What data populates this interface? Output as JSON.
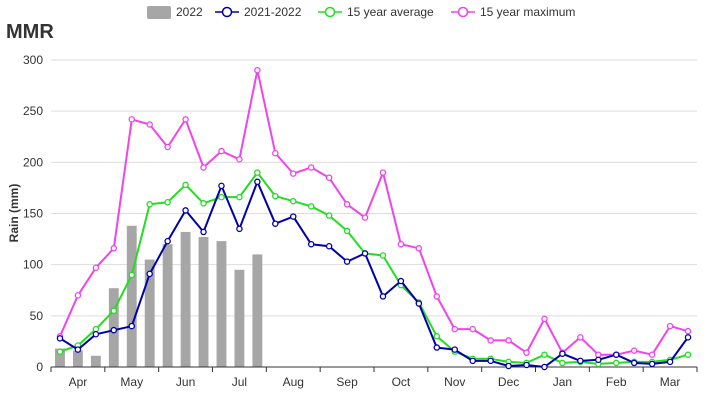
{
  "chart_data": {
    "type": "bar+line",
    "title": "MMR",
    "xlabel": "",
    "ylabel": "Rain (mm)",
    "ylim": [
      0,
      300
    ],
    "yticks": [
      0,
      50,
      100,
      150,
      200,
      250,
      300
    ],
    "grid": true,
    "legend_position": "top",
    "months": [
      "Apr",
      "May",
      "Jun",
      "Jul",
      "Aug",
      "Sep",
      "Oct",
      "Nov",
      "Dec",
      "Jan",
      "Feb",
      "Mar"
    ],
    "dekads_per_month": 3,
    "bar_series": {
      "name": "2022",
      "color": "#a6a6a6",
      "values": [
        18,
        16,
        11,
        77,
        138,
        105,
        120,
        132,
        127,
        123,
        95,
        110
      ]
    },
    "line_series": [
      {
        "name": "2021-2022",
        "color": "#0000aa",
        "values": [
          28,
          17,
          32,
          36,
          40,
          91,
          123,
          153,
          132,
          177,
          135,
          181,
          140,
          147,
          120,
          118,
          103,
          111,
          69,
          84,
          62,
          19,
          17,
          6,
          6,
          1,
          2,
          0,
          13,
          6,
          7,
          12,
          4,
          3,
          5,
          29
        ]
      },
      {
        "name": "15 year average",
        "color": "#22dd22",
        "values": [
          15,
          21,
          37,
          55,
          90,
          159,
          161,
          178,
          160,
          166,
          166,
          190,
          167,
          162,
          157,
          148,
          133,
          111,
          109,
          80,
          63,
          30,
          15,
          8,
          8,
          5,
          4,
          12,
          4,
          5,
          3,
          4,
          5,
          5,
          7,
          12
        ]
      },
      {
        "name": "15 year maximum",
        "color": "#ee44ee",
        "values": [
          30,
          70,
          97,
          116,
          242,
          237,
          215,
          242,
          195,
          211,
          203,
          290,
          209,
          189,
          195,
          185,
          159,
          146,
          190,
          120,
          116,
          69,
          37,
          37,
          26,
          26,
          14,
          47,
          14,
          29,
          12,
          12,
          16,
          12,
          40,
          35
        ]
      }
    ]
  }
}
